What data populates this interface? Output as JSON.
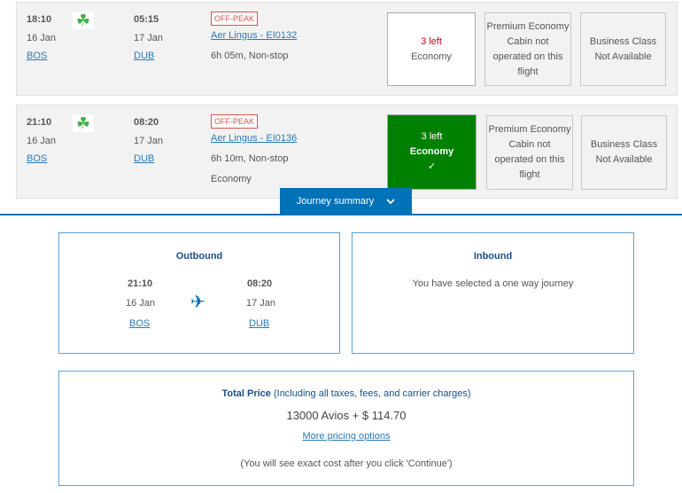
{
  "flights": [
    {
      "dep_time": "18:10",
      "dep_date": "16 Jan",
      "dep_airport": "BOS",
      "arr_time": "05:15",
      "arr_date": "17 Jan",
      "arr_airport": "DUB",
      "badge": "OFF-PEAK",
      "airline": "Aer Lingus - EI0132",
      "duration": "6h 05m, Non-stop",
      "cabin": "",
      "economy": {
        "seats": "3 left",
        "label": "Economy",
        "selected": false
      },
      "premium": {
        "title": "Premium Economy",
        "status": "Cabin not operated on this flight"
      },
      "business": {
        "title": "Business Class",
        "status": "Not Available"
      }
    },
    {
      "dep_time": "21:10",
      "dep_date": "16 Jan",
      "dep_airport": "BOS",
      "arr_time": "08:20",
      "arr_date": "17 Jan",
      "arr_airport": "DUB",
      "badge": "OFF-PEAK",
      "airline": "Aer Lingus - EI0136",
      "duration": "6h 10m, Non-stop",
      "cabin": "Economy",
      "economy": {
        "seats": "3 left",
        "label": "Economy",
        "selected": true,
        "check": "✓"
      },
      "premium": {
        "title": "Premium Economy",
        "status": "Cabin not operated on this flight"
      },
      "business": {
        "title": "Business Class",
        "status": "Not Available"
      }
    }
  ],
  "journey_summary": {
    "label": "Journey summary",
    "icon": "chevron-down-icon"
  },
  "outbound": {
    "title": "Outbound",
    "dep_time": "21:10",
    "dep_date": "16 Jan",
    "dep_airport": "BOS",
    "arr_time": "08:20",
    "arr_date": "17 Jan",
    "arr_airport": "DUB",
    "icon": "plane-icon"
  },
  "inbound": {
    "title": "Inbound",
    "message": "You have selected a one way journey"
  },
  "price": {
    "title": "Total Price",
    "note": "(Including all taxes, fees, and carrier charges)",
    "amount": "13000 Avios + $ 114.70",
    "more_link": "More pricing options",
    "disclaimer": "(You will see exact cost after you click 'Continue')"
  },
  "colors": {
    "accent": "#0072b8",
    "selected": "#008000",
    "badge": "#d9534f"
  }
}
